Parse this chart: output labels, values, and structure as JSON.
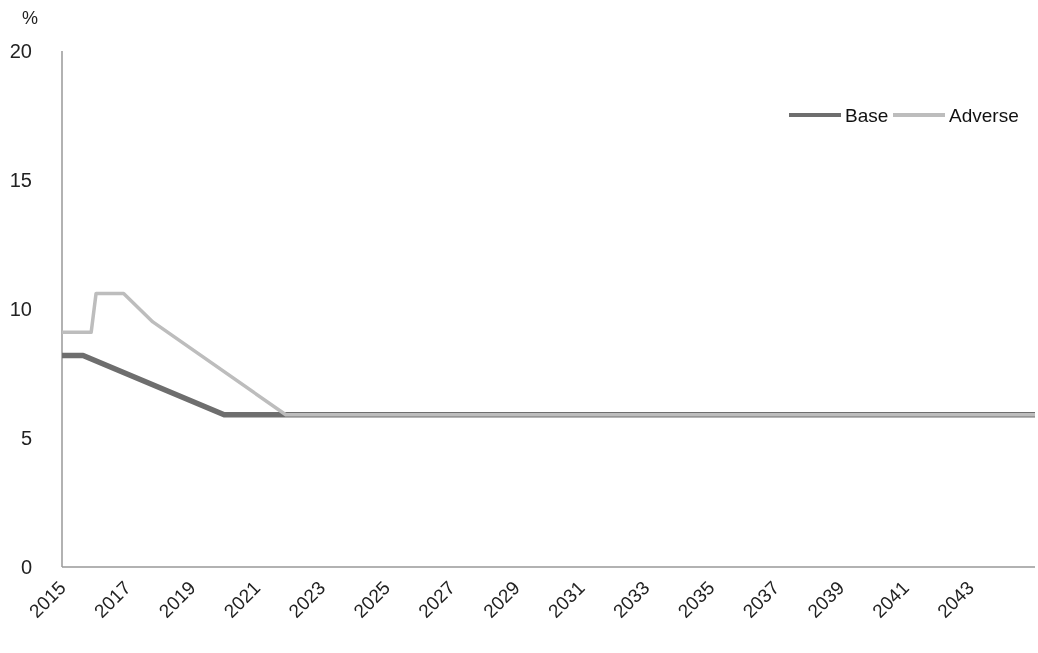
{
  "chart_data": {
    "type": "line",
    "ylabel": "%",
    "xlim": [
      2015,
      2045
    ],
    "xticks": [
      2015,
      2017,
      2019,
      2021,
      2023,
      2025,
      2027,
      2029,
      2031,
      2033,
      2035,
      2037,
      2039,
      2041,
      2043
    ],
    "ylim": [
      0,
      20
    ],
    "yticks": [
      0,
      5,
      10,
      15,
      20
    ],
    "grid": false,
    "legend": "top right",
    "line_style": "solid",
    "series": [
      {
        "name": "Base",
        "color": "#6e6e6e",
        "x": [
          2015,
          2015.65,
          2020,
          2045
        ],
        "values": [
          8.2,
          8.2,
          5.9,
          5.9
        ]
      },
      {
        "name": "Adverse",
        "color": "#bdbdbd",
        "x": [
          2015,
          2015.9,
          2016.05,
          2016.9,
          2017.8,
          2021.9,
          2045
        ],
        "values": [
          9.1,
          9.1,
          10.6,
          10.6,
          9.5,
          5.9,
          5.9
        ]
      }
    ]
  }
}
